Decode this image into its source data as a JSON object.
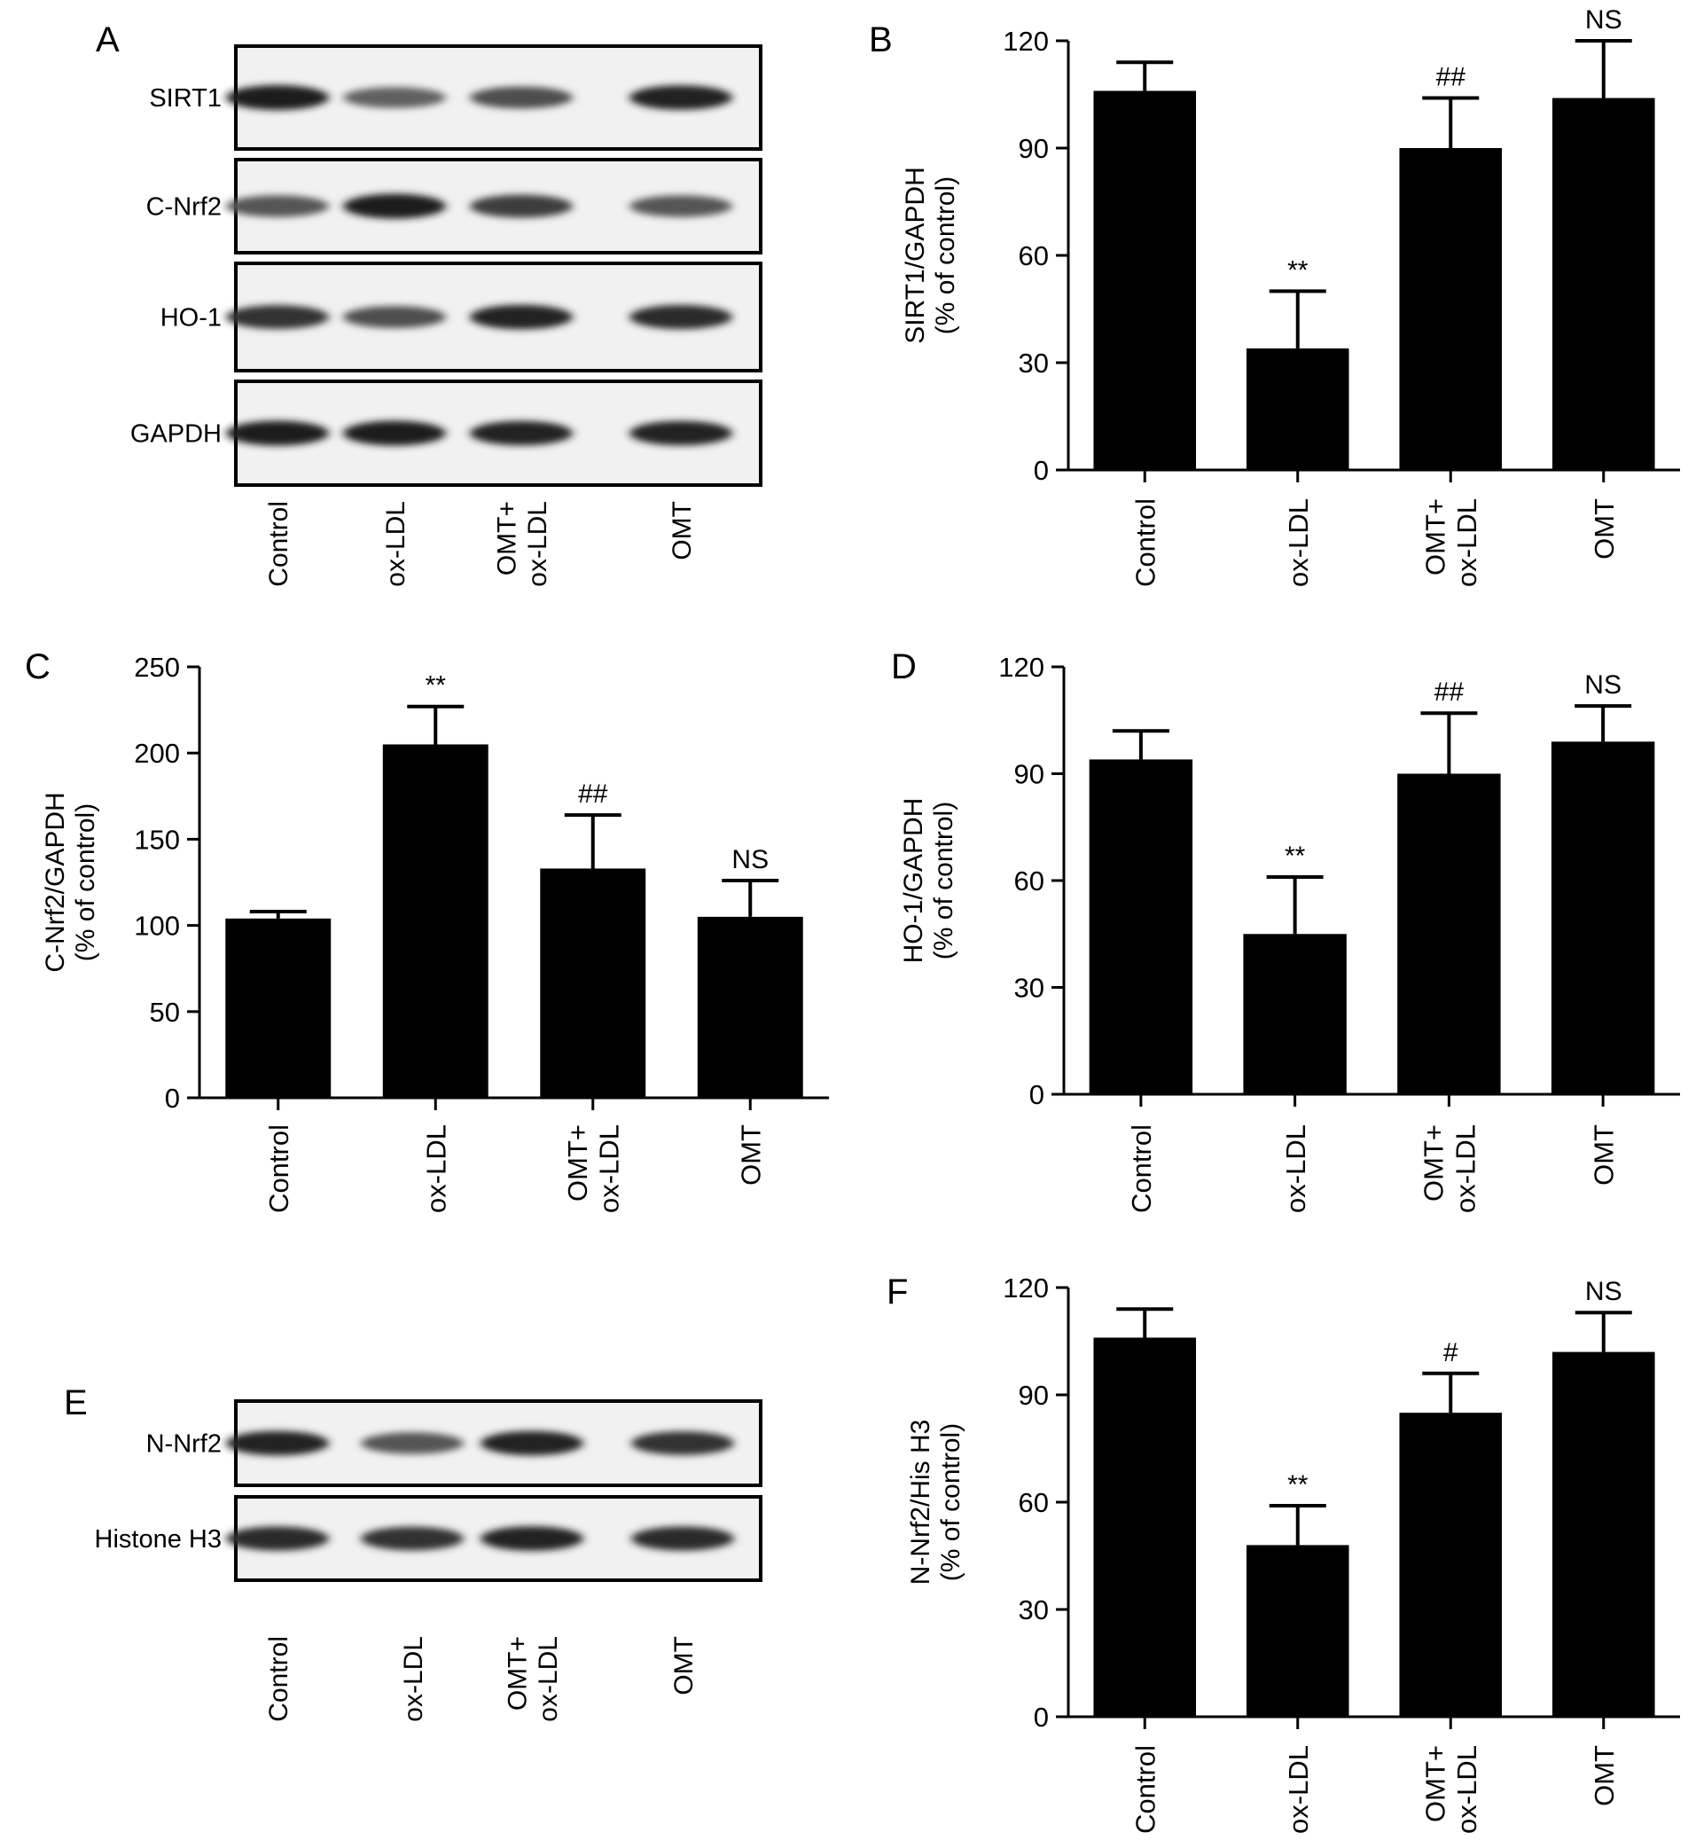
{
  "panel_letters": [
    "A",
    "B",
    "C",
    "D",
    "E",
    "F"
  ],
  "blot_A": {
    "rows": [
      "SIRT1",
      "C-Nrf2",
      "HO-1",
      "GAPDH"
    ],
    "lanes": [
      "Control",
      "ox-LDL",
      "OMT+\nox-LDL",
      "OMT"
    ]
  },
  "blot_E": {
    "rows": [
      "N-Nrf2",
      "Histone H3"
    ],
    "lanes": [
      "Control",
      "ox-LDL",
      "OMT+\nox-LDL",
      "OMT"
    ]
  },
  "chart_data": [
    {
      "panel": "B",
      "type": "bar",
      "categories": [
        "Control",
        "ox-LDL",
        "OMT+\nox-LDL",
        "OMT"
      ],
      "values": [
        106,
        34,
        90,
        104
      ],
      "errors": [
        8,
        16,
        14,
        16
      ],
      "annotations": [
        "",
        "**",
        "##",
        "NS"
      ],
      "ylabel": "SIRT1/GAPDH\n(% of control)",
      "ylim": [
        0,
        120
      ],
      "yticks": [
        0,
        30,
        60,
        90,
        120
      ],
      "grid": false
    },
    {
      "panel": "C",
      "type": "bar",
      "categories": [
        "Control",
        "ox-LDL",
        "OMT+\nox-LDL",
        "OMT"
      ],
      "values": [
        104,
        205,
        133,
        105
      ],
      "errors": [
        4,
        22,
        31,
        21
      ],
      "annotations": [
        "",
        "**",
        "##",
        "NS"
      ],
      "ylabel": "C-Nrf2/GAPDH\n(% of control)",
      "ylim": [
        0,
        250
      ],
      "yticks": [
        0,
        50,
        100,
        150,
        200,
        250
      ],
      "grid": false
    },
    {
      "panel": "D",
      "type": "bar",
      "categories": [
        "Control",
        "ox-LDL",
        "OMT+\nox-LDL",
        "OMT"
      ],
      "values": [
        94,
        45,
        90,
        99
      ],
      "errors": [
        8,
        16,
        17,
        10
      ],
      "annotations": [
        "",
        "**",
        "##",
        "NS"
      ],
      "ylabel": "HO-1/GAPDH\n(% of control)",
      "ylim": [
        0,
        120
      ],
      "yticks": [
        0,
        30,
        60,
        90,
        120
      ],
      "grid": false
    },
    {
      "panel": "F",
      "type": "bar",
      "categories": [
        "Control",
        "ox-LDL",
        "OMT+\nox-LDL",
        "OMT"
      ],
      "values": [
        106,
        48,
        85,
        102
      ],
      "errors": [
        8,
        11,
        11,
        11
      ],
      "annotations": [
        "",
        "**",
        "#",
        "NS"
      ],
      "ylabel": "N-Nrf2/His H3\n(% of control)",
      "ylim": [
        0,
        120
      ],
      "yticks": [
        0,
        30,
        60,
        90,
        120
      ],
      "grid": false
    }
  ]
}
